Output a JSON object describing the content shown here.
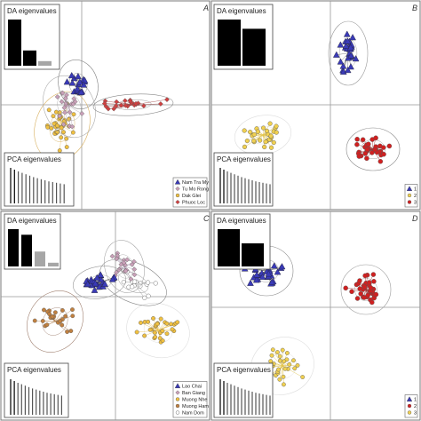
{
  "figure": {
    "panels": [
      {
        "letter": "A",
        "da_title": "DA eigenvalues",
        "pca_title": "PCA eigenvalues",
        "da_eigen": [
          1.0,
          0.33,
          0.1
        ],
        "da_eigen_colors": [
          "#000000",
          "#000000",
          "#a6a6a6"
        ],
        "pca_eigen": [
          1.0,
          0.95,
          0.9,
          0.86,
          0.82,
          0.78,
          0.74,
          0.71,
          0.68,
          0.65,
          0.62,
          0.6,
          0.58,
          0.56,
          0.54
        ],
        "legend": [
          {
            "label": "Nam Tra My",
            "shape": "triangle",
            "color": "#3a3ab8"
          },
          {
            "label": "Tu Mo Rong",
            "shape": "diamond",
            "color": "#c9a0b8"
          },
          {
            "label": "Dak Glei",
            "shape": "circle",
            "color": "#f0c040"
          },
          {
            "label": "Phuoc Loc",
            "shape": "diamond",
            "color": "#d04040"
          }
        ]
      },
      {
        "letter": "B",
        "da_title": "DA eigenvalues",
        "pca_title": "PCA eigenvalues",
        "da_eigen": [
          1.0,
          0.8
        ],
        "da_eigen_colors": [
          "#000000",
          "#000000"
        ],
        "pca_eigen": [
          1.0,
          0.95,
          0.9,
          0.86,
          0.82,
          0.78,
          0.74,
          0.71,
          0.68,
          0.65,
          0.62,
          0.6,
          0.58,
          0.56,
          0.54
        ],
        "legend": [
          {
            "label": "1",
            "shape": "triangle",
            "color": "#3a3ab8"
          },
          {
            "label": "2",
            "shape": "circle",
            "color": "#f0d050"
          },
          {
            "label": "3",
            "shape": "circle",
            "color": "#d02020"
          }
        ]
      },
      {
        "letter": "C",
        "da_title": "DA eigenvalues",
        "pca_title": "PCA eigenvalues",
        "da_eigen": [
          1.0,
          0.85,
          0.4,
          0.1
        ],
        "da_eigen_colors": [
          "#000000",
          "#000000",
          "#a6a6a6",
          "#a6a6a6"
        ],
        "pca_eigen": [
          1.0,
          0.95,
          0.9,
          0.86,
          0.82,
          0.78,
          0.74,
          0.71,
          0.68,
          0.65,
          0.62,
          0.6,
          0.58,
          0.56,
          0.54
        ],
        "legend": [
          {
            "label": "Lao Chai",
            "shape": "triangle",
            "color": "#3a3ab8"
          },
          {
            "label": "Ban Giang",
            "shape": "diamond",
            "color": "#c9a0b8"
          },
          {
            "label": "Muong Nhe",
            "shape": "circle",
            "color": "#f0c040"
          },
          {
            "label": "Muong Ham",
            "shape": "circle",
            "color": "#c08040"
          },
          {
            "label": "Nam Dom",
            "shape": "circle",
            "color": "#ffffff"
          }
        ]
      },
      {
        "letter": "D",
        "da_title": "DA eigenvalues",
        "pca_title": "PCA eigenvalues",
        "da_eigen": [
          1.0,
          0.62
        ],
        "da_eigen_colors": [
          "#000000",
          "#000000"
        ],
        "pca_eigen": [
          1.0,
          0.95,
          0.9,
          0.86,
          0.82,
          0.78,
          0.74,
          0.71,
          0.68,
          0.65,
          0.62,
          0.6,
          0.58,
          0.56,
          0.54
        ],
        "legend": [
          {
            "label": "1",
            "shape": "triangle",
            "color": "#3a3ab8"
          },
          {
            "label": "2",
            "shape": "circle",
            "color": "#d02020"
          },
          {
            "label": "3",
            "shape": "circle",
            "color": "#f0d050"
          }
        ]
      }
    ]
  }
}
